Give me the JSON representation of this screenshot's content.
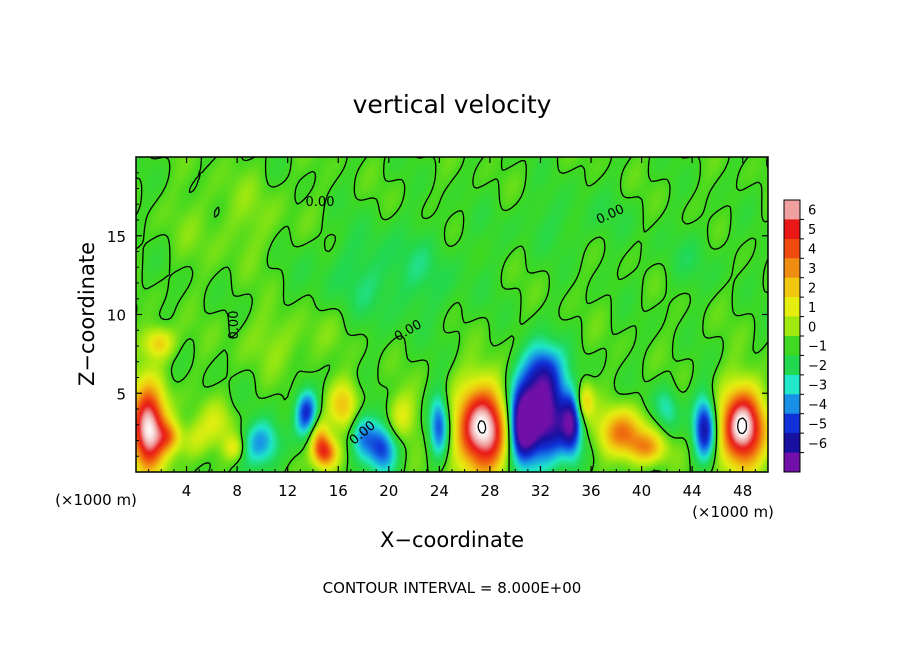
{
  "chart_data": {
    "type": "heatmap",
    "title": "vertical velocity",
    "xlabel": "X−coordinate",
    "ylabel": "Z−coordinate",
    "x_unit_left": "(×1000 m)",
    "x_unit_right": "(×1000 m)",
    "xlim": [
      0,
      50
    ],
    "ylim": [
      0,
      20
    ],
    "x_ticks": [
      4,
      8,
      12,
      16,
      20,
      24,
      28,
      32,
      36,
      40,
      44,
      48
    ],
    "y_ticks": [
      5,
      10,
      15
    ],
    "contour_labels": [
      "0.00",
      "0.00",
      "0.00",
      "0.00",
      "0.00"
    ],
    "contour_interval": "CONTOUR INTERVAL = 8.000E+00",
    "colorbar": {
      "labels": [
        "6",
        "5",
        "4",
        "3",
        "2",
        "1",
        "0",
        "−1",
        "−2",
        "−3",
        "−4",
        "−5",
        "−6"
      ],
      "colors": [
        "#f0a0a0",
        "#e81818",
        "#f04a10",
        "#f08c10",
        "#f0c810",
        "#e4ee10",
        "#a0e810",
        "#40d820",
        "#22d850",
        "#20e8c8",
        "#1890e8",
        "#1030d8",
        "#1810a0",
        "#7010a8"
      ]
    },
    "features": [
      {
        "x": 1.0,
        "z": 2.8,
        "w": 8,
        "rx": 1.4,
        "rz": 2.6
      },
      {
        "x": 2.7,
        "z": 2.2,
        "w": 3,
        "rx": 0.9,
        "rz": 1.0
      },
      {
        "x": 1.8,
        "z": 8.2,
        "w": 3,
        "rx": 1.2,
        "rz": 1.0
      },
      {
        "x": 4.5,
        "z": 2.0,
        "w": 1.5,
        "rx": 1.2,
        "rz": 1.2
      },
      {
        "x": 6.5,
        "z": 3.0,
        "w": 1.5,
        "rx": 1.5,
        "rz": 1.5
      },
      {
        "x": 7.8,
        "z": 1.5,
        "w": 2,
        "rx": 0.8,
        "rz": 0.8
      },
      {
        "x": 10.0,
        "z": 1.8,
        "w": -3,
        "rx": 1.6,
        "rz": 1.5
      },
      {
        "x": 13.5,
        "z": 3.8,
        "w": -4,
        "rx": 0.9,
        "rz": 1.5
      },
      {
        "x": 14.5,
        "z": 2.2,
        "w": 3,
        "rx": 0.8,
        "rz": 1.2
      },
      {
        "x": 15.0,
        "z": 1.2,
        "w": 5,
        "rx": 1.0,
        "rz": 1.0
      },
      {
        "x": 16.5,
        "z": 4.2,
        "w": 3,
        "rx": 1.2,
        "rz": 1.5
      },
      {
        "x": 17.8,
        "z": 2.5,
        "w": -3,
        "rx": 1.0,
        "rz": 1.5
      },
      {
        "x": 19.5,
        "z": 1.5,
        "w": -4,
        "rx": 1.2,
        "rz": 1.5
      },
      {
        "x": 21.0,
        "z": 3.5,
        "w": 2,
        "rx": 1.2,
        "rz": 1.5
      },
      {
        "x": 24.0,
        "z": 3.0,
        "w": -4,
        "rx": 0.8,
        "rz": 2.0
      },
      {
        "x": 27.5,
        "z": 2.7,
        "w": 8,
        "rx": 2.2,
        "rz": 2.8
      },
      {
        "x": 30.5,
        "z": 3.0,
        "w": -7,
        "rx": 1.2,
        "rz": 2.5
      },
      {
        "x": 32.5,
        "z": 3.5,
        "w": -6,
        "rx": 1.8,
        "rz": 3.0
      },
      {
        "x": 32.0,
        "z": 6.5,
        "w": -3,
        "rx": 1.5,
        "rz": 1.8
      },
      {
        "x": 34.5,
        "z": 3.0,
        "w": -4,
        "rx": 0.8,
        "rz": 2.0
      },
      {
        "x": 35.5,
        "z": 4.5,
        "w": 3,
        "rx": 0.7,
        "rz": 1.2
      },
      {
        "x": 38.5,
        "z": 2.5,
        "w": 4,
        "rx": 2.0,
        "rz": 1.5
      },
      {
        "x": 40.5,
        "z": 1.5,
        "w": 3,
        "rx": 1.5,
        "rz": 1.0
      },
      {
        "x": 42.0,
        "z": 4.0,
        "w": -2,
        "rx": 1.0,
        "rz": 1.5
      },
      {
        "x": 45.0,
        "z": 2.8,
        "w": -5,
        "rx": 0.9,
        "rz": 2.0
      },
      {
        "x": 48.0,
        "z": 2.8,
        "w": 8,
        "rx": 1.8,
        "rz": 2.5
      },
      {
        "x": 20.0,
        "z": 12.5,
        "w": -1.2,
        "rx": 6.0,
        "rz": 3.0
      },
      {
        "x": 34.0,
        "z": 16.0,
        "w": -0.6,
        "rx": 5.0,
        "rz": 2.0
      },
      {
        "x": 8.0,
        "z": 16.0,
        "w": 0.6,
        "rx": 5.0,
        "rz": 3.0
      },
      {
        "x": 44.0,
        "z": 13.5,
        "w": -0.6,
        "rx": 3.0,
        "rz": 2.0
      },
      {
        "x": 12.0,
        "z": 8.5,
        "w": 0.8,
        "rx": 4.0,
        "rz": 2.0
      }
    ]
  }
}
